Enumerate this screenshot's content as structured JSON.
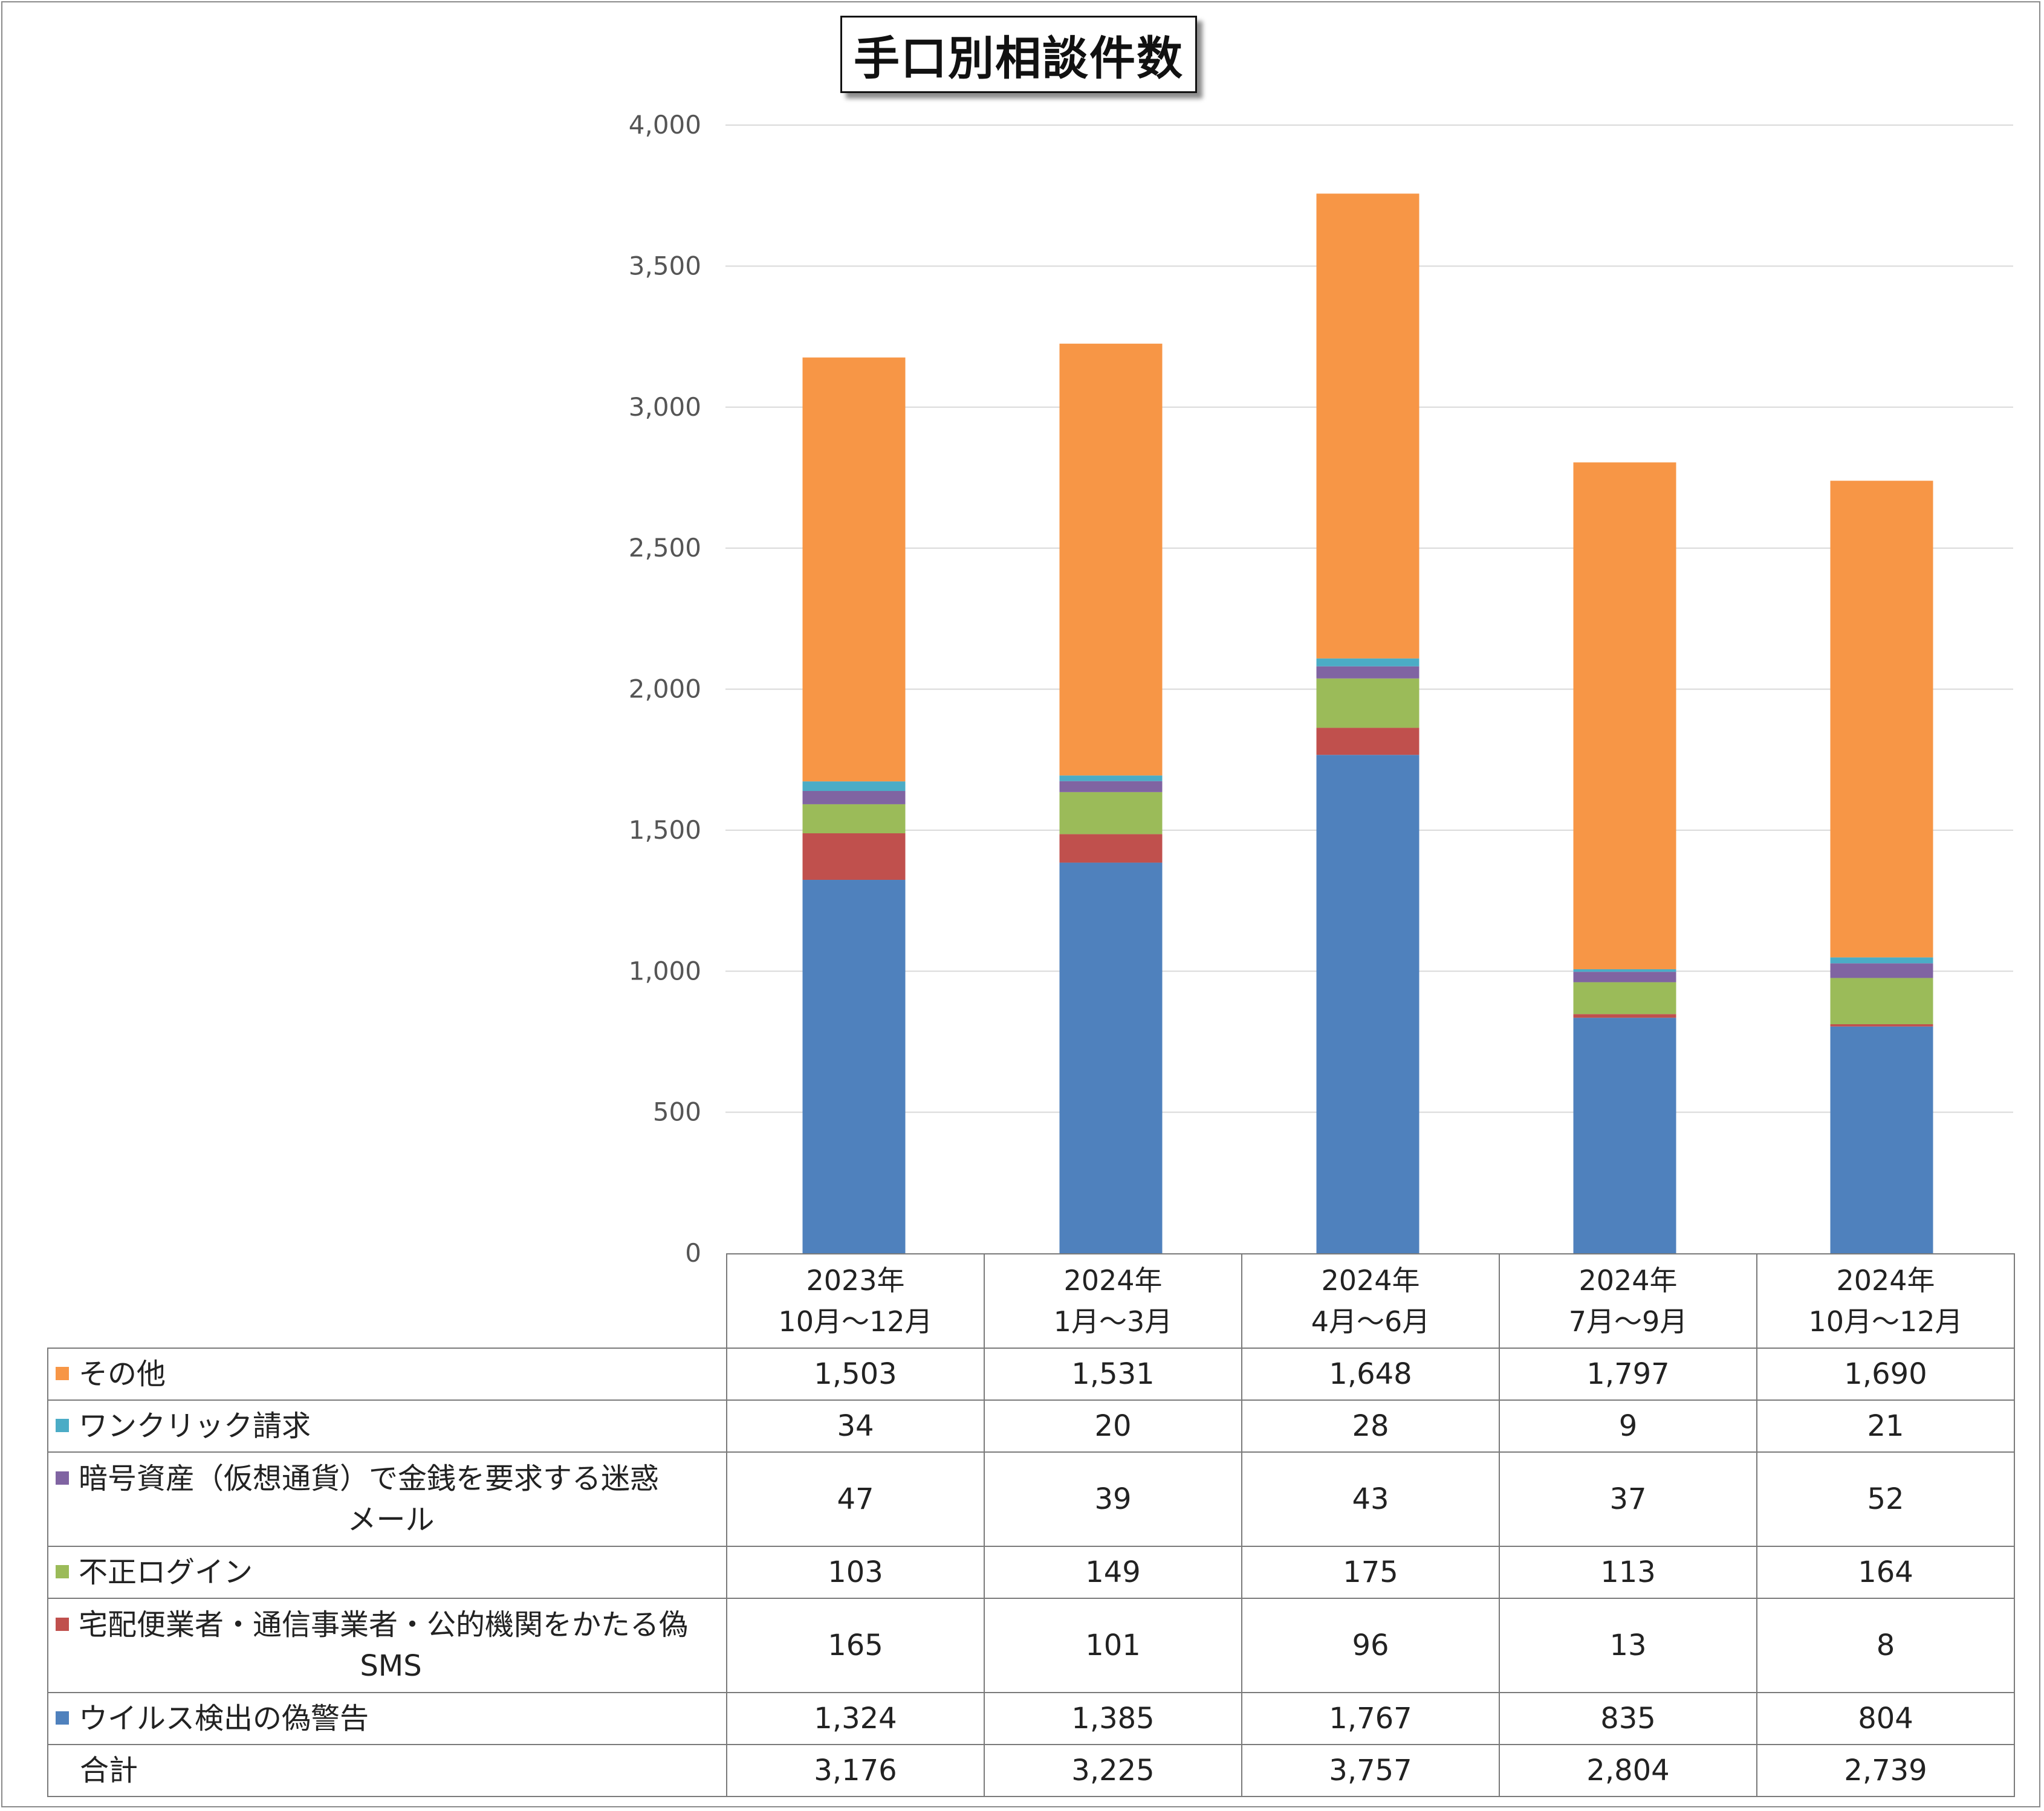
{
  "title": "手口別相談件数",
  "chart_data": {
    "type": "bar",
    "stacked": true,
    "title": "手口別相談件数",
    "ylim": [
      0,
      4000
    ],
    "yticks": [
      "0",
      "500",
      "1,000",
      "1,500",
      "2,000",
      "2,500",
      "3,000",
      "3,500",
      "4,000"
    ],
    "ytick_values": [
      0,
      500,
      1000,
      1500,
      2000,
      2500,
      3000,
      3500,
      4000
    ],
    "grid": true,
    "legend": "table",
    "categories": [
      [
        "2023年",
        "10月～12月"
      ],
      [
        "2024年",
        "1月～3月"
      ],
      [
        "2024年",
        "4月～6月"
      ],
      [
        "2024年",
        "7月～9月"
      ],
      [
        "2024年",
        "10月～12月"
      ]
    ],
    "series": [
      {
        "name": "ウイルス検出の偽警告",
        "color": "#4f81bd",
        "values": [
          1324,
          1385,
          1767,
          835,
          804
        ]
      },
      {
        "name": "宅配便業者・通信事業者・公的機関をかたる偽SMS",
        "color": "#c0504d",
        "values": [
          165,
          101,
          96,
          13,
          8
        ]
      },
      {
        "name": "不正ログイン",
        "color": "#9bbb59",
        "values": [
          103,
          149,
          175,
          113,
          164
        ]
      },
      {
        "name": "暗号資産（仮想通貨）で金銭を要求する迷惑メール",
        "color": "#8064a2",
        "values": [
          47,
          39,
          43,
          37,
          52
        ]
      },
      {
        "name": "ワンクリック請求",
        "color": "#4bacc6",
        "values": [
          34,
          20,
          28,
          9,
          21
        ]
      },
      {
        "name": "その他",
        "color": "#f79646",
        "values": [
          1503,
          1531,
          1648,
          1797,
          1690
        ]
      }
    ]
  },
  "table": {
    "rows": [
      {
        "label": "その他",
        "color": "#f79646",
        "cells": [
          "1,503",
          "1,531",
          "1,648",
          "1,797",
          "1,690"
        ]
      },
      {
        "label": "ワンクリック請求",
        "color": "#4bacc6",
        "cells": [
          "34",
          "20",
          "28",
          "9",
          "21"
        ]
      },
      {
        "label": "暗号資産（仮想通貨）で金銭を要求する迷惑",
        "label_cont": "メール",
        "color": "#8064a2",
        "cells": [
          "47",
          "39",
          "43",
          "37",
          "52"
        ]
      },
      {
        "label": "不正ログイン",
        "color": "#9bbb59",
        "cells": [
          "103",
          "149",
          "175",
          "113",
          "164"
        ]
      },
      {
        "label": "宅配便業者・通信事業者・公的機関をかたる偽",
        "label_cont": "SMS",
        "color": "#c0504d",
        "cells": [
          "165",
          "101",
          "96",
          "13",
          "8"
        ]
      },
      {
        "label": "ウイルス検出の偽警告",
        "color": "#4f81bd",
        "cells": [
          "1,324",
          "1,385",
          "1,767",
          "835",
          "804"
        ]
      }
    ],
    "total": {
      "label": "合計",
      "cells": [
        "3,176",
        "3,225",
        "3,757",
        "2,804",
        "2,739"
      ]
    }
  }
}
